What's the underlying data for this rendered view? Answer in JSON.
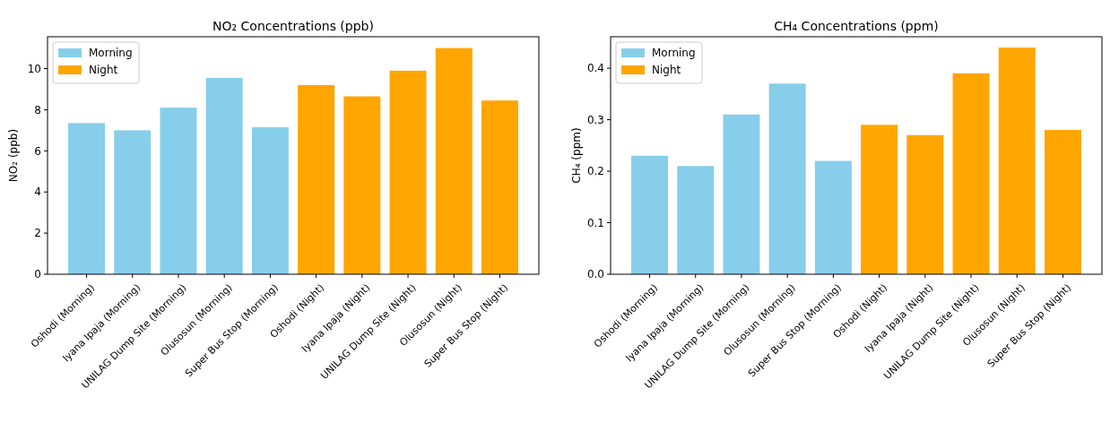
{
  "chart_data": [
    {
      "type": "bar",
      "title": "NO₂ Concentrations (ppb)",
      "ylabel": "NO₂ (ppb)",
      "categories": [
        "Oshodi (Morning)",
        "Iyana Ipaja (Morning)",
        "UNILAG Dump Site (Morning)",
        "Olusosun (Morning)",
        "Super Bus Stop (Morning)",
        "Oshodi (Night)",
        "Iyana Ipaja (Night)",
        "UNILAG Dump Site (Night)",
        "Olusosun (Night)",
        "Super Bus Stop (Night)"
      ],
      "series": [
        {
          "name": "Morning",
          "color": "#87ceeb",
          "values": [
            7.35,
            7.0,
            8.1,
            9.55,
            7.15,
            null,
            null,
            null,
            null,
            null
          ]
        },
        {
          "name": "Night",
          "color": "#ffa500",
          "values": [
            null,
            null,
            null,
            null,
            null,
            9.2,
            8.65,
            9.9,
            11.0,
            8.45
          ]
        }
      ],
      "ylim": [
        0,
        11.55
      ],
      "yticks": [
        0,
        2,
        4,
        6,
        8,
        10
      ],
      "legend": "top left",
      "grid": false
    },
    {
      "type": "bar",
      "title": "CH₄ Concentrations (ppm)",
      "ylabel": "CH₄ (ppm)",
      "categories": [
        "Oshodi (Morning)",
        "Iyana Ipaja (Morning)",
        "UNILAG Dump Site (Morning)",
        "Olusosun (Morning)",
        "Super Bus Stop (Morning)",
        "Oshodi (Night)",
        "Iyana Ipaja (Night)",
        "UNILAG Dump Site (Night)",
        "Olusosun (Night)",
        "Super Bus Stop (Night)"
      ],
      "series": [
        {
          "name": "Morning",
          "color": "#87ceeb",
          "values": [
            0.23,
            0.21,
            0.31,
            0.37,
            0.22,
            null,
            null,
            null,
            null,
            null
          ]
        },
        {
          "name": "Night",
          "color": "#ffa500",
          "values": [
            null,
            null,
            null,
            null,
            null,
            0.29,
            0.27,
            0.39,
            0.44,
            0.28
          ]
        }
      ],
      "ylim": [
        0,
        0.461
      ],
      "yticks": [
        {
          "value": 0,
          "label": "0.0"
        },
        0.1,
        0.2,
        0.3,
        0.4
      ],
      "legend": "top left",
      "grid": false
    }
  ]
}
